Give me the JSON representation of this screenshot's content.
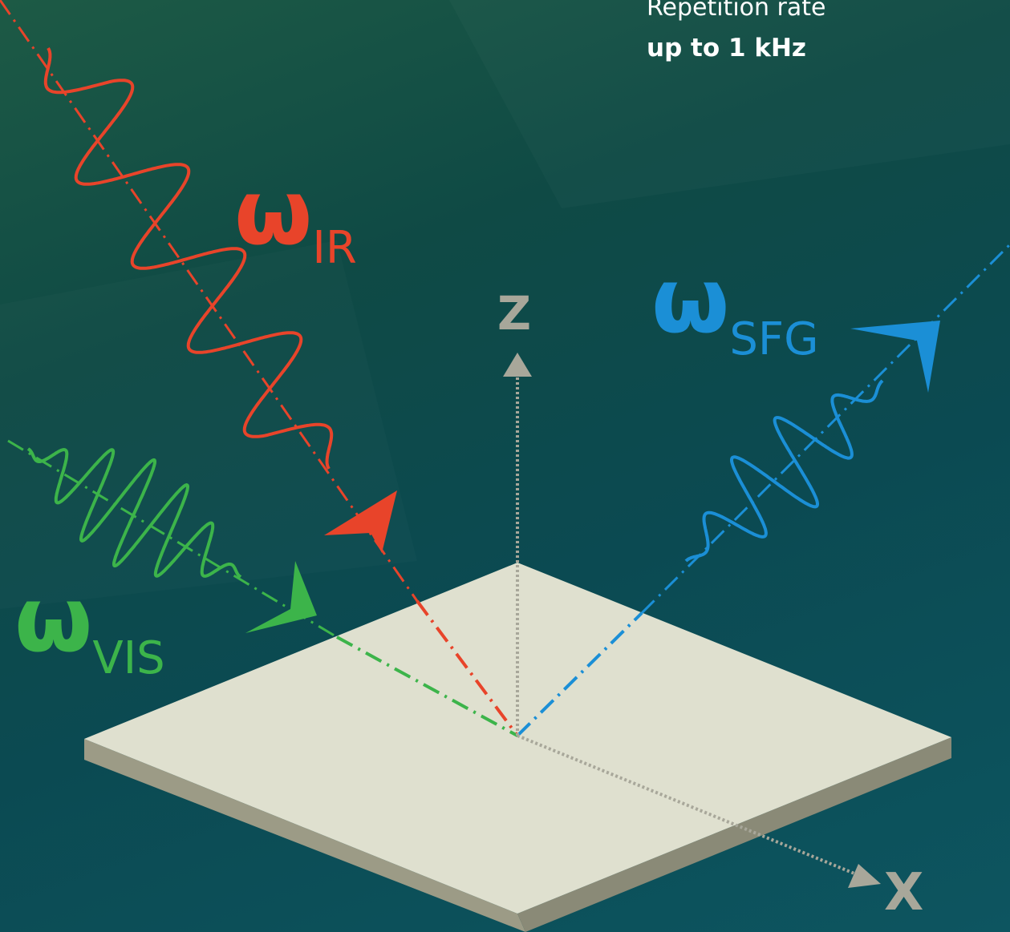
{
  "info": {
    "repetition_caption": "Repetition rate",
    "repetition_value": "up to 1 kHz"
  },
  "beams": {
    "ir": {
      "symbol": "ω",
      "subscript": "IR",
      "color": "#e8442a"
    },
    "vis": {
      "symbol": "ω",
      "subscript": "VIS",
      "color": "#3cb44a"
    },
    "sfg": {
      "symbol": "ω",
      "subscript": "SFG",
      "color": "#1b8fd6"
    }
  },
  "axes": {
    "z_label": "Z",
    "x_label": "X",
    "color": "#a8a79a"
  },
  "colors": {
    "sample_top": "#dfe0cf",
    "sample_side_left": "#9c9b86",
    "sample_side_right": "#8a8a77"
  }
}
